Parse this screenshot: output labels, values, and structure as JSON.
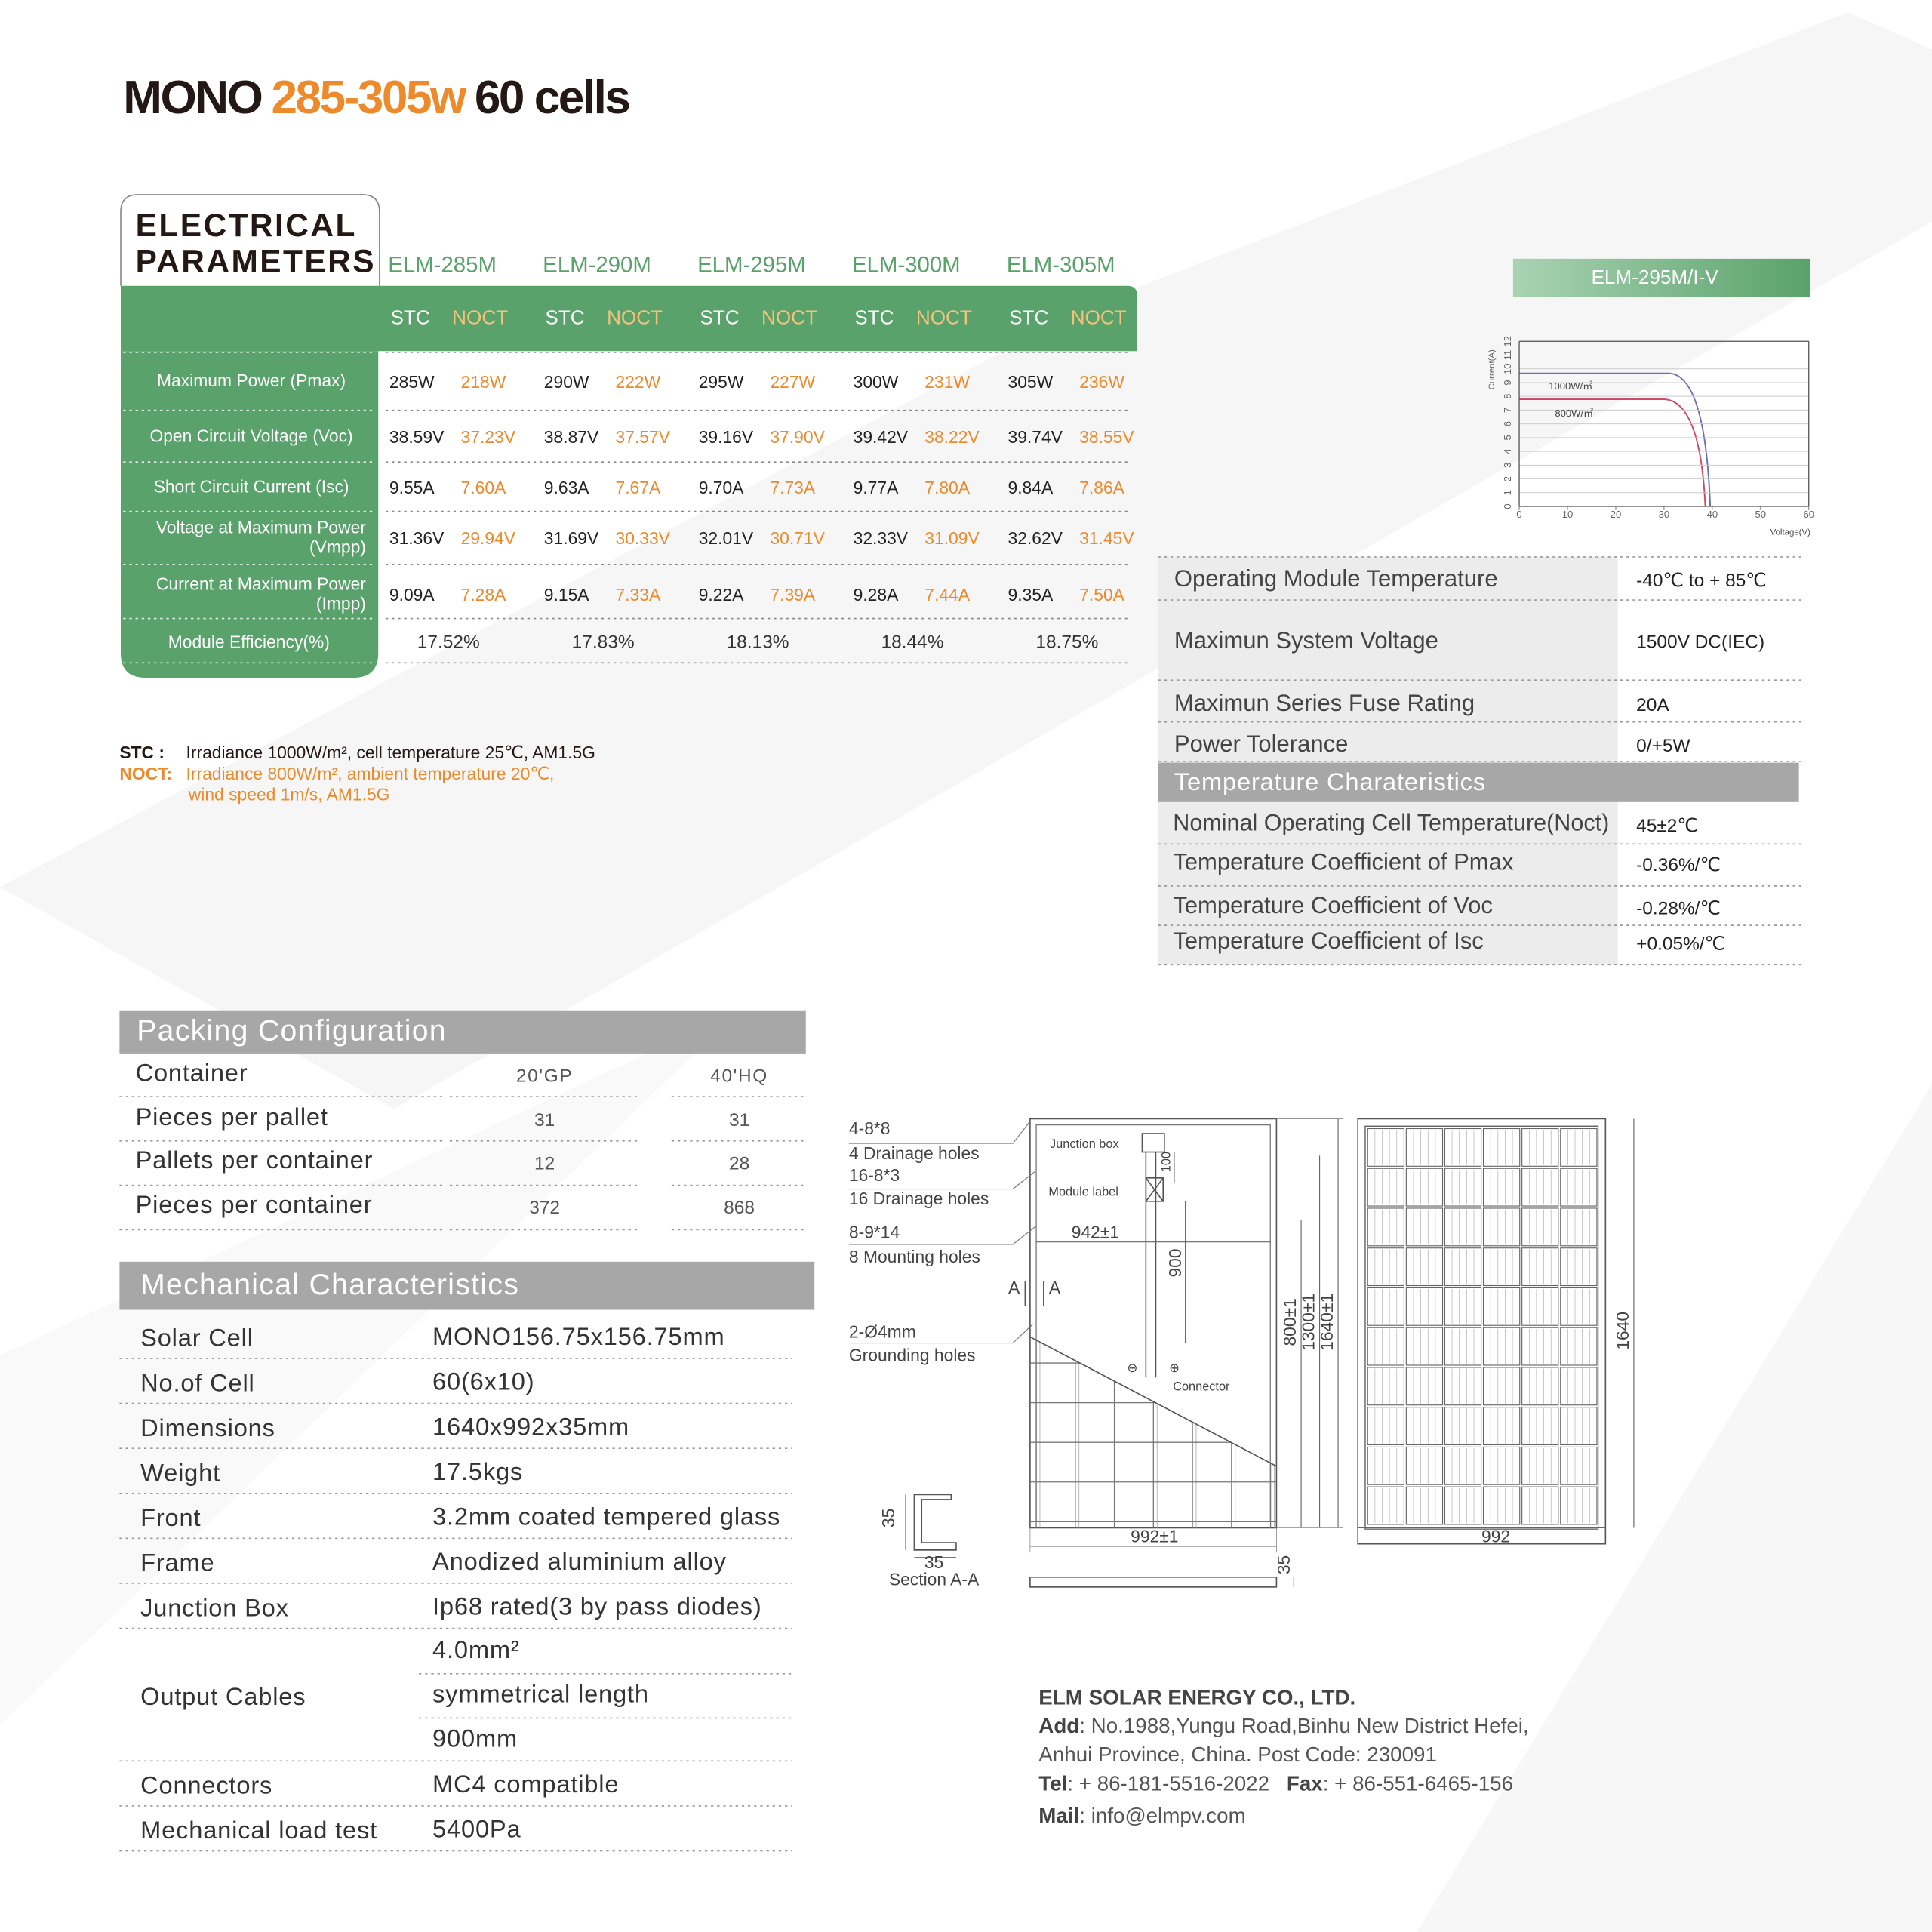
{
  "header": {
    "title_mono": "MONO",
    "title_power": "285-305w",
    "title_cells": "60 cells"
  },
  "electrical": {
    "title_line1": "ELECTRICAL",
    "title_line2": "PARAMETERS",
    "models": [
      "ELM-285M",
      "ELM-290M",
      "ELM-295M",
      "ELM-300M",
      "ELM-305M"
    ],
    "stc_label": "STC",
    "noct_label": "NOCT",
    "rows": [
      {
        "label": [
          "Maximum Power (Pmax)"
        ],
        "stc": [
          "285W",
          "290W",
          "295W",
          "300W",
          "305W"
        ],
        "noct": [
          "218W",
          "222W",
          "227W",
          "231W",
          "236W"
        ]
      },
      {
        "label": [
          "Open Circuit Voltage (Voc)"
        ],
        "stc": [
          "38.59V",
          "38.87V",
          "39.16V",
          "39.42V",
          "39.74V"
        ],
        "noct": [
          "37.23V",
          "37.57V",
          "37.90V",
          "38.22V",
          "38.55V"
        ]
      },
      {
        "label": [
          "Short Circuit Current (Isc)"
        ],
        "stc": [
          "9.55A",
          "9.63A",
          "9.70A",
          "9.77A",
          "9.84A"
        ],
        "noct": [
          "7.60A",
          "7.67A",
          "7.73A",
          "7.80A",
          "7.86A"
        ]
      },
      {
        "label": [
          "Voltage at Maximum Power",
          "(Vmpp)"
        ],
        "stc": [
          "31.36V",
          "31.69V",
          "32.01V",
          "32.33V",
          "32.62V"
        ],
        "noct": [
          "29.94V",
          "30.33V",
          "30.71V",
          "31.09V",
          "31.45V"
        ]
      },
      {
        "label": [
          "Current at Maximum Power",
          "(Impp)"
        ],
        "stc": [
          "9.09A",
          "9.15A",
          "9.22A",
          "9.28A",
          "9.35A"
        ],
        "noct": [
          "7.28A",
          "7.33A",
          "7.39A",
          "7.44A",
          "7.50A"
        ]
      }
    ],
    "efficiency_label": "Module Efficiency(%)",
    "efficiency": [
      "17.52%",
      "17.83%",
      "18.13%",
      "18.44%",
      "18.75%"
    ]
  },
  "notes": {
    "stc_key": "STC :",
    "stc_text": "Irradiance 1000W/m², cell temperature 25℃, AM1.5G",
    "noct_key": "NOCT:",
    "noct_text_1": "Irradiance 800W/m², ambient temperature 20℃,",
    "noct_text_2": "wind speed 1m/s, AM1.5G"
  },
  "iv_chart": {
    "title": "ELM-295M/I-V",
    "ylabel": "Current(A)",
    "xlabel": "Voltage(V)",
    "xlim": [
      0,
      60
    ],
    "xticks": [
      0,
      10,
      20,
      30,
      40,
      50,
      60
    ],
    "ylim": [
      0,
      12
    ],
    "yticks": [
      0,
      1,
      2,
      3,
      4,
      5,
      6,
      7,
      8,
      9,
      10,
      11,
      12
    ],
    "grid": true,
    "curve_labels": [
      "1000W/㎡",
      "800W/㎡"
    ]
  },
  "operating": {
    "rows": [
      {
        "label": "Operating Module Temperature",
        "value": "-40℃  to  + 85℃"
      },
      {
        "label": "Maximun System Voltage",
        "value": "1500V DC(IEC)"
      },
      {
        "label": "Maximun Series Fuse Rating",
        "value": "20A"
      },
      {
        "label": "Power Tolerance",
        "value": "0/+5W"
      }
    ],
    "temp_title": "Temperature Charateristics",
    "temp_rows": [
      {
        "label": "Nominal Operating Cell Temperature(Noct)",
        "value": "45±2℃"
      },
      {
        "label": "Temperature Coefficient of Pmax",
        "value": "-0.36%/℃"
      },
      {
        "label": "Temperature Coefficient of Voc",
        "value": "-0.28%/℃"
      },
      {
        "label": "Temperature Coefficient of Isc",
        "value": "+0.05%/℃"
      }
    ]
  },
  "packing": {
    "title": "Packing Configuration",
    "header_label": "Container",
    "columns": [
      "20'GP",
      "40'HQ"
    ],
    "rows": [
      {
        "label": "Pieces per pallet",
        "values": [
          31,
          31
        ]
      },
      {
        "label": "Pallets per container",
        "values": [
          12,
          28
        ]
      },
      {
        "label": "Pieces per container",
        "values": [
          372,
          868
        ]
      }
    ]
  },
  "mechanical": {
    "title": "Mechanical Characteristics",
    "rows": [
      {
        "label": "Solar Cell",
        "values": [
          "MONO156.75x156.75mm"
        ]
      },
      {
        "label": "No.of Cell",
        "values": [
          "60(6x10)"
        ]
      },
      {
        "label": "Dimensions",
        "values": [
          "1640x992x35mm"
        ]
      },
      {
        "label": "Weight",
        "values": [
          "17.5kgs"
        ]
      },
      {
        "label": "Front",
        "values": [
          "3.2mm coated tempered glass"
        ]
      },
      {
        "label": "Frame",
        "values": [
          "Anodized aluminium alloy"
        ]
      },
      {
        "label": "Junction Box",
        "values": [
          "Ip68 rated(3 by pass diodes)"
        ]
      },
      {
        "label": "Output Cables",
        "values": [
          "4.0mm²",
          "symmetrical length",
          "900mm"
        ]
      },
      {
        "label": "Connectors",
        "values": [
          "MC4 compatible"
        ]
      },
      {
        "label": "Mechanical load test",
        "values": [
          "5400Pa"
        ]
      }
    ]
  },
  "drawing": {
    "drain_small_code": "4-8*8",
    "drain_small": "4 Drainage holes",
    "drain_large_code": "16-8*3",
    "drain_large": "16 Drainage holes",
    "mount_code": "8-9*14",
    "mount": "8 Mounting holes",
    "section_mark": "A",
    "ground_code": "2-Ø4mm",
    "ground": "Grounding holes",
    "junction_box": "Junction box",
    "module_label": "Module label",
    "dim_100": "100",
    "dim_942": "942±1",
    "dim_900": "900",
    "dim_800": "800±1",
    "dim_1300": "1300±1",
    "dim_1640_tol": "1640±1",
    "minus": "⊖",
    "plus": "⊕",
    "connector": "Connector",
    "dim_992_tol": "992±1",
    "dim_35": "35",
    "section": "Section A-A",
    "dim_1640": "1640",
    "dim_992": "992"
  },
  "contact": {
    "company": "ELM SOLAR ENERGY CO., LTD.",
    "address_key": "Add",
    "address_line1": ": No.1988,Yungu Road,Binhu New District Hefei,",
    "address_line2": "Anhui Province, China. Post Code: 230091",
    "tel_key": "Tel",
    "tel": ": + 86-181-5516-2022",
    "fax_key": "Fax",
    "fax": ": + 86-551-6465-156",
    "mail_key": "Mail",
    "mail": ": info@elmpv.com"
  }
}
